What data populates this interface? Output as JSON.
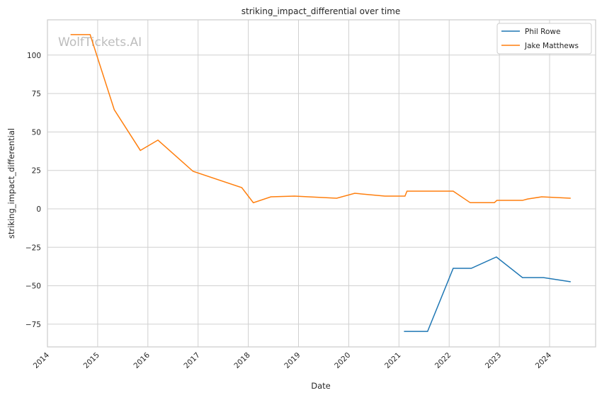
{
  "chart_data": {
    "type": "line",
    "title": "striking_impact_differential over time",
    "xlabel": "Date",
    "ylabel": "striking_impact_differential",
    "watermark": "WolfTickets.AI",
    "xlim": [
      2014.0,
      2024.92
    ],
    "ylim": [
      -89.5,
      123.5
    ],
    "xticks": [
      2014,
      2015,
      2016,
      2017,
      2018,
      2019,
      2020,
      2021,
      2022,
      2023,
      2024
    ],
    "xtick_labels": [
      "2014",
      "2015",
      "2016",
      "2017",
      "2018",
      "2019",
      "2020",
      "2021",
      "2022",
      "2023",
      "2024"
    ],
    "yticks": [
      -75,
      -50,
      -25,
      0,
      25,
      50,
      75,
      100
    ],
    "ytick_labels": [
      "−75",
      "−50",
      "−25",
      "0",
      "25",
      "50",
      "75",
      "100"
    ],
    "grid": true,
    "legend_position": "top-right",
    "series": [
      {
        "name": "Phil Rowe",
        "color": "#1f77b4",
        "x": [
          2021.1,
          2021.57,
          2022.08,
          2022.44,
          2022.94,
          2023.46,
          2023.88,
          2024.42
        ],
        "y": [
          -79.7,
          -79.7,
          -38.7,
          -38.7,
          -31.3,
          -44.7,
          -44.7,
          -47.4
        ]
      },
      {
        "name": "Jake Matthews",
        "color": "#ff7f0e",
        "x": [
          2014.46,
          2014.85,
          2015.33,
          2015.85,
          2016.2,
          2016.9,
          2017.87,
          2018.1,
          2018.45,
          2018.92,
          2019.76,
          2020.12,
          2020.72,
          2021.12,
          2021.16,
          2022.08,
          2022.42,
          2022.9,
          2022.95,
          2023.46,
          2023.56,
          2023.84,
          2024.42
        ],
        "y": [
          113.3,
          113.3,
          64.5,
          38,
          44.7,
          24.4,
          13.8,
          4,
          7.8,
          8.3,
          6.9,
          10.1,
          8.3,
          8.3,
          11.5,
          11.5,
          4,
          4,
          5.5,
          5.5,
          6.4,
          7.8,
          6.9
        ]
      }
    ]
  }
}
